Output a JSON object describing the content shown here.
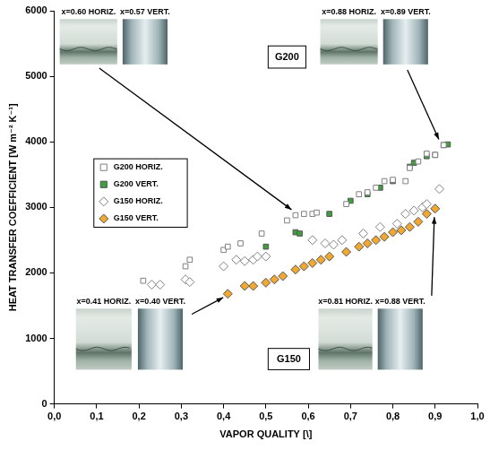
{
  "chart_data": {
    "type": "scatter",
    "x_label": "VAPOR QUALITY [\\]",
    "y_label": "HEAT TRANSFER COEFFICIENT [W m⁻² K⁻¹]",
    "xlim": [
      0,
      1
    ],
    "xticks": [
      {
        "value": 0,
        "label": "0,0"
      },
      {
        "value": 0.1,
        "label": "0,1"
      },
      {
        "value": 0.2,
        "label": "0,2"
      },
      {
        "value": 0.3,
        "label": "0,3"
      },
      {
        "value": 0.4,
        "label": "0,4"
      },
      {
        "value": 0.5,
        "label": "0,5"
      },
      {
        "value": 0.6,
        "label": "0,6"
      },
      {
        "value": 0.7,
        "label": "0,7"
      },
      {
        "value": 0.8,
        "label": "0,8"
      },
      {
        "value": 0.9,
        "label": "0,9"
      },
      {
        "value": 1,
        "label": "1,0"
      }
    ],
    "ylim": [
      0,
      6000
    ],
    "yticks": [
      0,
      1000,
      2000,
      3000,
      4000,
      5000,
      6000
    ],
    "grid": false,
    "legend": "upper left",
    "annotations": [
      "x=0.60 HORIZ.",
      "x=0.57 VERT.",
      "x=0.88 HORIZ.",
      "x=0.89 VERT.",
      "G200",
      "x=0.41 HORIZ.",
      "x=0.40 VERT.",
      "x=0.81 HORIZ.",
      "x=0.88 VERT.",
      "G150"
    ],
    "series": [
      {
        "name": "G200 HORIZ.",
        "color": "#7f7f7f",
        "marker": "square_open",
        "x": [
          0.21,
          0.31,
          0.32,
          0.4,
          0.41,
          0.44,
          0.49,
          0.55,
          0.57,
          0.59,
          0.61,
          0.62,
          0.69,
          0.72,
          0.74,
          0.76,
          0.78,
          0.8,
          0.83,
          0.84,
          0.86,
          0.88,
          0.9,
          0.92
        ],
        "values": [
          1880,
          2100,
          2200,
          2350,
          2400,
          2450,
          2600,
          2800,
          2880,
          2900,
          2900,
          2920,
          3050,
          3200,
          3230,
          3300,
          3400,
          3420,
          3400,
          3600,
          3700,
          3820,
          3800,
          3950
        ]
      },
      {
        "name": "G200 VERT.",
        "color": "#3f9f3f",
        "marker": "square",
        "x": [
          0.5,
          0.57,
          0.58,
          0.65,
          0.7,
          0.74,
          0.77,
          0.8,
          0.84,
          0.85,
          0.88,
          0.9,
          0.92,
          0.93
        ],
        "values": [
          2400,
          2620,
          2600,
          2900,
          3100,
          3200,
          3300,
          3400,
          3620,
          3680,
          3780,
          3800,
          3950,
          3960
        ]
      },
      {
        "name": "G150 HORIZ.",
        "color": "#7f7f7f",
        "marker": "diamond_open",
        "x": [
          0.23,
          0.25,
          0.31,
          0.32,
          0.4,
          0.43,
          0.45,
          0.47,
          0.48,
          0.5,
          0.61,
          0.64,
          0.66,
          0.68,
          0.73,
          0.77,
          0.81,
          0.83,
          0.85,
          0.87,
          0.88,
          0.91
        ],
        "values": [
          1820,
          1820,
          1900,
          1860,
          2100,
          2200,
          2180,
          2200,
          2250,
          2250,
          2500,
          2450,
          2430,
          2500,
          2600,
          2700,
          2750,
          2900,
          2950,
          3000,
          3050,
          3280
        ]
      },
      {
        "name": "G150 VERT.",
        "color": "#f0a830",
        "marker": "diamond",
        "x": [
          0.41,
          0.45,
          0.47,
          0.5,
          0.52,
          0.54,
          0.57,
          0.59,
          0.61,
          0.63,
          0.65,
          0.69,
          0.72,
          0.74,
          0.76,
          0.78,
          0.8,
          0.82,
          0.84,
          0.86,
          0.88,
          0.9
        ],
        "values": [
          1680,
          1800,
          1800,
          1850,
          1900,
          1950,
          2050,
          2100,
          2150,
          2200,
          2250,
          2320,
          2400,
          2450,
          2500,
          2550,
          2620,
          2650,
          2700,
          2780,
          2900,
          2980
        ]
      }
    ]
  }
}
